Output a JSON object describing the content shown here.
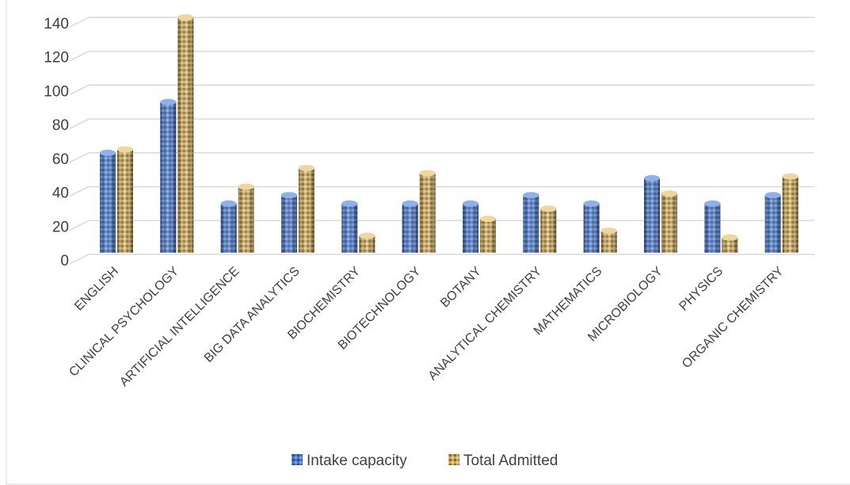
{
  "chart_data": {
    "type": "bar",
    "title": "",
    "xlabel": "",
    "ylabel": "",
    "ylim": [
      0,
      140
    ],
    "yticks": [
      0,
      20,
      40,
      60,
      80,
      100,
      120,
      140
    ],
    "grid": true,
    "legend_position": "bottom",
    "categories": [
      "ENGLISH",
      "CLINICAL PSYCHOLOGY",
      "ARTIFICIAL INTELLIGENCE",
      "BIG DATA ANALYTICS",
      "BIOCHEMISTRY",
      "BIOTECHNOLOGY",
      "BOTANY",
      "ANALYTICAL CHEMISTRY",
      "MATHEMATICS",
      "MICROBIOLOGY",
      "PHYSICS",
      "ORGANIC CHEMISTRY"
    ],
    "series": [
      {
        "name": "Intake capacity",
        "color": "#4472c4",
        "values": [
          60,
          90,
          30,
          35,
          30,
          30,
          30,
          35,
          30,
          45,
          30,
          35
        ]
      },
      {
        "name": "Total Admitted",
        "color": "#c9a65a",
        "values": [
          62,
          140,
          40,
          51,
          11,
          48,
          21,
          27,
          14,
          36,
          10,
          46
        ]
      }
    ]
  }
}
